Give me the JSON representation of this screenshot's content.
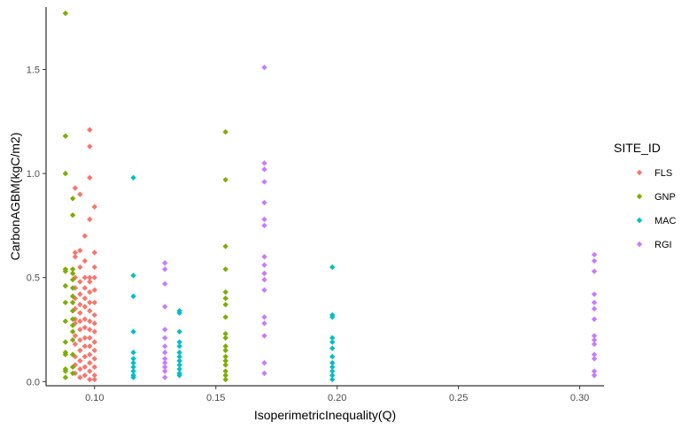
{
  "chart_data": {
    "type": "scatter",
    "title": "",
    "xlabel": "IsoperimetricInequality(Q)",
    "ylabel": "CarbonAGBM(kgC/m2)",
    "xlim": [
      0.08,
      0.31
    ],
    "ylim": [
      -0.02,
      1.8
    ],
    "x_ticks": [
      0.1,
      0.15,
      0.2,
      0.25,
      0.3
    ],
    "x_tick_labels": [
      "0.10",
      "0.15",
      "0.20",
      "0.25",
      "0.30"
    ],
    "y_ticks": [
      0.0,
      0.5,
      1.0,
      1.5
    ],
    "y_tick_labels": [
      "0.0",
      "0.5",
      "1.0",
      "1.5"
    ],
    "grid": false,
    "marker": "diamond",
    "legend": {
      "title": "SITE_ID",
      "position": "right"
    },
    "series": [
      {
        "name": "FLS",
        "color": "#F8766D",
        "points": [
          [
            0.092,
            0.93
          ],
          [
            0.092,
            0.62
          ],
          [
            0.092,
            0.6
          ],
          [
            0.092,
            0.5
          ],
          [
            0.092,
            0.45
          ],
          [
            0.092,
            0.4
          ],
          [
            0.092,
            0.35
          ],
          [
            0.092,
            0.3
          ],
          [
            0.092,
            0.28
          ],
          [
            0.092,
            0.22
          ],
          [
            0.092,
            0.18
          ],
          [
            0.092,
            0.12
          ],
          [
            0.092,
            0.08
          ],
          [
            0.092,
            0.04
          ],
          [
            0.094,
            0.9
          ],
          [
            0.094,
            0.63
          ],
          [
            0.094,
            0.55
          ],
          [
            0.094,
            0.48
          ],
          [
            0.094,
            0.42
          ],
          [
            0.094,
            0.37
          ],
          [
            0.094,
            0.33
          ],
          [
            0.094,
            0.29
          ],
          [
            0.094,
            0.25
          ],
          [
            0.094,
            0.2
          ],
          [
            0.094,
            0.15
          ],
          [
            0.094,
            0.1
          ],
          [
            0.094,
            0.06
          ],
          [
            0.094,
            0.02
          ],
          [
            0.096,
            0.7
          ],
          [
            0.096,
            0.58
          ],
          [
            0.096,
            0.5
          ],
          [
            0.096,
            0.45
          ],
          [
            0.096,
            0.4
          ],
          [
            0.096,
            0.36
          ],
          [
            0.096,
            0.3
          ],
          [
            0.096,
            0.26
          ],
          [
            0.096,
            0.21
          ],
          [
            0.096,
            0.17
          ],
          [
            0.096,
            0.12
          ],
          [
            0.096,
            0.07
          ],
          [
            0.096,
            0.03
          ],
          [
            0.098,
            1.21
          ],
          [
            0.098,
            1.13
          ],
          [
            0.098,
            0.98
          ],
          [
            0.098,
            0.78
          ],
          [
            0.098,
            0.5
          ],
          [
            0.098,
            0.48
          ],
          [
            0.098,
            0.43
          ],
          [
            0.098,
            0.38
          ],
          [
            0.098,
            0.34
          ],
          [
            0.098,
            0.29
          ],
          [
            0.098,
            0.25
          ],
          [
            0.098,
            0.21
          ],
          [
            0.098,
            0.17
          ],
          [
            0.098,
            0.13
          ],
          [
            0.098,
            0.09
          ],
          [
            0.098,
            0.05
          ],
          [
            0.098,
            0.01
          ],
          [
            0.1,
            0.84
          ],
          [
            0.1,
            0.62
          ],
          [
            0.1,
            0.55
          ],
          [
            0.1,
            0.5
          ],
          [
            0.1,
            0.44
          ],
          [
            0.1,
            0.38
          ],
          [
            0.1,
            0.32
          ],
          [
            0.1,
            0.28
          ],
          [
            0.1,
            0.24
          ],
          [
            0.1,
            0.19
          ],
          [
            0.1,
            0.15
          ],
          [
            0.1,
            0.11
          ],
          [
            0.1,
            0.07
          ],
          [
            0.1,
            0.03
          ],
          [
            0.1,
            0.01
          ]
        ]
      },
      {
        "name": "GNP",
        "color": "#7CAE00",
        "points": [
          [
            0.088,
            1.77
          ],
          [
            0.088,
            1.18
          ],
          [
            0.088,
            1.0
          ],
          [
            0.088,
            0.54
          ],
          [
            0.088,
            0.53
          ],
          [
            0.088,
            0.46
          ],
          [
            0.088,
            0.38
          ],
          [
            0.088,
            0.29
          ],
          [
            0.088,
            0.19
          ],
          [
            0.088,
            0.14
          ],
          [
            0.088,
            0.13
          ],
          [
            0.088,
            0.06
          ],
          [
            0.088,
            0.05
          ],
          [
            0.088,
            0.02
          ],
          [
            0.091,
            0.88
          ],
          [
            0.091,
            0.8
          ],
          [
            0.091,
            0.54
          ],
          [
            0.091,
            0.52
          ],
          [
            0.091,
            0.49
          ],
          [
            0.091,
            0.45
          ],
          [
            0.091,
            0.41
          ],
          [
            0.091,
            0.38
          ],
          [
            0.091,
            0.34
          ],
          [
            0.091,
            0.3
          ],
          [
            0.091,
            0.27
          ],
          [
            0.091,
            0.24
          ],
          [
            0.091,
            0.2
          ],
          [
            0.091,
            0.13
          ],
          [
            0.091,
            0.07
          ],
          [
            0.091,
            0.04
          ],
          [
            0.154,
            1.2
          ],
          [
            0.154,
            0.97
          ],
          [
            0.154,
            0.65
          ],
          [
            0.154,
            0.54
          ],
          [
            0.154,
            0.43
          ],
          [
            0.154,
            0.4
          ],
          [
            0.154,
            0.37
          ],
          [
            0.154,
            0.31
          ],
          [
            0.154,
            0.23
          ],
          [
            0.154,
            0.21
          ],
          [
            0.154,
            0.17
          ],
          [
            0.154,
            0.15
          ],
          [
            0.154,
            0.12
          ],
          [
            0.154,
            0.1
          ],
          [
            0.154,
            0.08
          ],
          [
            0.154,
            0.05
          ],
          [
            0.154,
            0.03
          ],
          [
            0.154,
            0.01
          ]
        ]
      },
      {
        "name": "MAC",
        "color": "#00BFC4",
        "points": [
          [
            0.116,
            0.98
          ],
          [
            0.116,
            0.51
          ],
          [
            0.116,
            0.41
          ],
          [
            0.116,
            0.24
          ],
          [
            0.116,
            0.14
          ],
          [
            0.116,
            0.11
          ],
          [
            0.116,
            0.09
          ],
          [
            0.116,
            0.07
          ],
          [
            0.116,
            0.05
          ],
          [
            0.116,
            0.03
          ],
          [
            0.116,
            0.02
          ],
          [
            0.135,
            0.34
          ],
          [
            0.135,
            0.33
          ],
          [
            0.135,
            0.24
          ],
          [
            0.135,
            0.19
          ],
          [
            0.135,
            0.17
          ],
          [
            0.135,
            0.14
          ],
          [
            0.135,
            0.12
          ],
          [
            0.135,
            0.1
          ],
          [
            0.135,
            0.08
          ],
          [
            0.135,
            0.06
          ],
          [
            0.135,
            0.04
          ],
          [
            0.135,
            0.03
          ],
          [
            0.198,
            0.55
          ],
          [
            0.198,
            0.32
          ],
          [
            0.198,
            0.31
          ],
          [
            0.198,
            0.21
          ],
          [
            0.198,
            0.19
          ],
          [
            0.198,
            0.16
          ],
          [
            0.198,
            0.12
          ],
          [
            0.198,
            0.09
          ],
          [
            0.198,
            0.07
          ],
          [
            0.198,
            0.05
          ],
          [
            0.198,
            0.03
          ],
          [
            0.198,
            0.01
          ]
        ]
      },
      {
        "name": "RGI",
        "color": "#C77CFF",
        "points": [
          [
            0.129,
            0.57
          ],
          [
            0.129,
            0.54
          ],
          [
            0.129,
            0.47
          ],
          [
            0.129,
            0.36
          ],
          [
            0.129,
            0.25
          ],
          [
            0.129,
            0.21
          ],
          [
            0.129,
            0.17
          ],
          [
            0.129,
            0.14
          ],
          [
            0.129,
            0.11
          ],
          [
            0.129,
            0.09
          ],
          [
            0.129,
            0.07
          ],
          [
            0.129,
            0.05
          ],
          [
            0.129,
            0.02
          ],
          [
            0.17,
            1.51
          ],
          [
            0.17,
            1.05
          ],
          [
            0.17,
            1.02
          ],
          [
            0.17,
            0.96
          ],
          [
            0.17,
            0.86
          ],
          [
            0.17,
            0.78
          ],
          [
            0.17,
            0.75
          ],
          [
            0.17,
            0.6
          ],
          [
            0.17,
            0.56
          ],
          [
            0.17,
            0.52
          ],
          [
            0.17,
            0.49
          ],
          [
            0.17,
            0.44
          ],
          [
            0.17,
            0.31
          ],
          [
            0.17,
            0.28
          ],
          [
            0.17,
            0.22
          ],
          [
            0.17,
            0.09
          ],
          [
            0.17,
            0.04
          ],
          [
            0.306,
            0.61
          ],
          [
            0.306,
            0.58
          ],
          [
            0.306,
            0.53
          ],
          [
            0.306,
            0.42
          ],
          [
            0.306,
            0.38
          ],
          [
            0.306,
            0.35
          ],
          [
            0.306,
            0.3
          ],
          [
            0.306,
            0.22
          ],
          [
            0.306,
            0.2
          ],
          [
            0.306,
            0.18
          ],
          [
            0.306,
            0.13
          ],
          [
            0.306,
            0.11
          ],
          [
            0.306,
            0.05
          ],
          [
            0.306,
            0.03
          ]
        ]
      }
    ]
  }
}
